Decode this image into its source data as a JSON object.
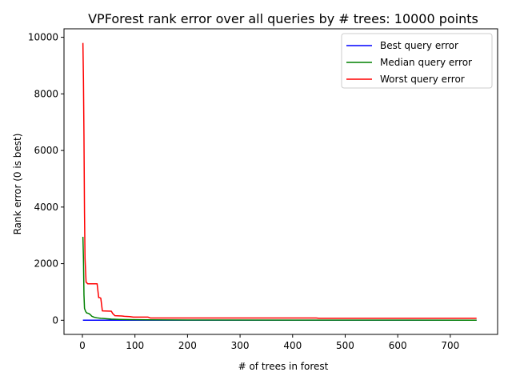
{
  "chart_data": {
    "type": "line",
    "title": "VPForest rank error over all queries by # trees: 10000 points",
    "xlabel": "# of trees in forest",
    "ylabel": "Rank error (0 is best)",
    "xlim": [
      -35,
      790
    ],
    "ylim": [
      -500,
      10300
    ],
    "xticks": [
      "0",
      "100",
      "200",
      "300",
      "400",
      "500",
      "600",
      "700"
    ],
    "xtick_values": [
      0,
      100,
      200,
      300,
      400,
      500,
      600,
      700
    ],
    "yticks": [
      "0",
      "2000",
      "4000",
      "6000",
      "8000",
      "10000"
    ],
    "ytick_values": [
      0,
      2000,
      4000,
      6000,
      8000,
      10000
    ],
    "grid": false,
    "legend_position": "top-right",
    "series": [
      {
        "name": "Best query error",
        "color": "#0000ff",
        "points": [
          [
            1,
            0
          ],
          [
            750,
            0
          ]
        ]
      },
      {
        "name": "Median query error",
        "color": "#008000",
        "points": [
          [
            1,
            2950
          ],
          [
            2,
            2200
          ],
          [
            3,
            900
          ],
          [
            4,
            420
          ],
          [
            6,
            320
          ],
          [
            8,
            260
          ],
          [
            12,
            240
          ],
          [
            15,
            200
          ],
          [
            18,
            140
          ],
          [
            22,
            110
          ],
          [
            28,
            85
          ],
          [
            35,
            70
          ],
          [
            45,
            55
          ],
          [
            55,
            40
          ],
          [
            70,
            30
          ],
          [
            90,
            22
          ],
          [
            120,
            15
          ],
          [
            200,
            8
          ],
          [
            400,
            5
          ],
          [
            750,
            3
          ]
        ]
      },
      {
        "name": "Worst query error",
        "color": "#ff0000",
        "points": [
          [
            1,
            9800
          ],
          [
            2,
            8500
          ],
          [
            3,
            6500
          ],
          [
            4,
            3800
          ],
          [
            5,
            2200
          ],
          [
            7,
            1350
          ],
          [
            10,
            1290
          ],
          [
            28,
            1290
          ],
          [
            31,
            800
          ],
          [
            33,
            800
          ],
          [
            35,
            780
          ],
          [
            38,
            330
          ],
          [
            55,
            320
          ],
          [
            58,
            230
          ],
          [
            62,
            160
          ],
          [
            75,
            150
          ],
          [
            80,
            140
          ],
          [
            90,
            130
          ],
          [
            97,
            110
          ],
          [
            125,
            110
          ],
          [
            129,
            80
          ],
          [
            445,
            80
          ],
          [
            450,
            70
          ],
          [
            750,
            70
          ]
        ]
      }
    ]
  }
}
